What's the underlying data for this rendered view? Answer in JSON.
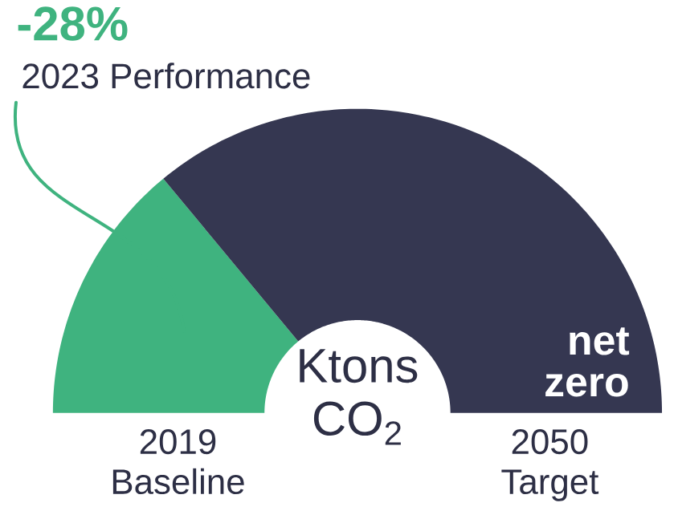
{
  "chart_data": {
    "type": "donut",
    "categories": [
      "2023 Performance",
      "net zero"
    ],
    "values": [
      28,
      72
    ],
    "colors": [
      "#3fb37f",
      "#353751"
    ],
    "annotations": [
      "-28%",
      "Ktons CO$_{2}$",
      "2019 Baseline",
      "2050 Target"
    ]
  }
}
